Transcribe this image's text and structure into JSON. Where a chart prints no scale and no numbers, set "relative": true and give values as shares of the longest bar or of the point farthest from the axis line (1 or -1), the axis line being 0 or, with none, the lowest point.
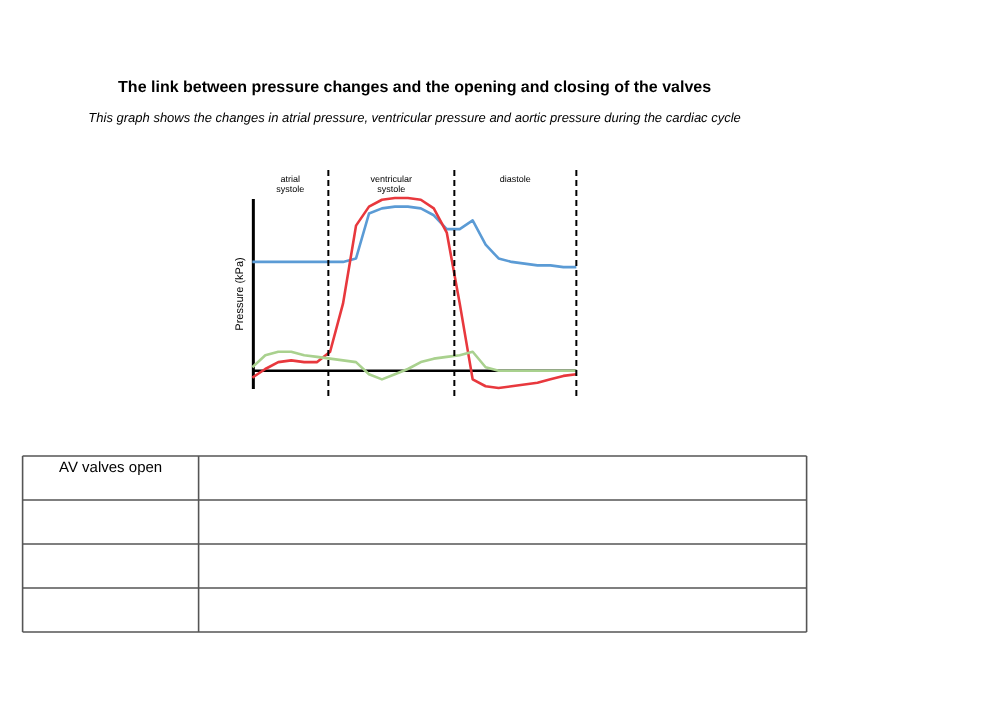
{
  "chart_data": {
    "type": "line",
    "title": "The link between pressure changes and the opening and closing of the valves",
    "subtitle": "This graph shows the changes in atrial pressure, ventricular pressure and aortic pressure during the cardiac cycle",
    "ylabel": "Pressure (kPa)",
    "relative": true,
    "marker": "none",
    "line_style": "solid",
    "categories": [
      null,
      null,
      null,
      null,
      null,
      null,
      null,
      null,
      null,
      null,
      null,
      null,
      null,
      null,
      null,
      null,
      null,
      null,
      null,
      null,
      null,
      null,
      null,
      null,
      null,
      null
    ],
    "series": [
      {
        "color": "#5b9bd5",
        "values": [
          0.63,
          0.63,
          0.63,
          0.63,
          0.63,
          0.63,
          0.63,
          0.63,
          0.65,
          0.91,
          0.94,
          0.95,
          0.95,
          0.94,
          0.9,
          0.82,
          0.82,
          0.87,
          0.73,
          0.65,
          0.63,
          0.62,
          0.61,
          0.61,
          0.6,
          0.6
        ]
      },
      {
        "color": "#e8383d",
        "values": [
          -0.04,
          0.01,
          0.05,
          0.06,
          0.05,
          0.05,
          0.11,
          0.39,
          0.84,
          0.95,
          0.99,
          1,
          1,
          0.99,
          0.94,
          0.8,
          0.39,
          -0.05,
          -0.09,
          -0.1,
          -0.09,
          -0.08,
          -0.07,
          -0.05,
          -0.03,
          -0.02
        ]
      },
      {
        "color": "#a9d18e",
        "values": [
          0.02,
          0.09,
          0.11,
          0.11,
          0.09,
          0.08,
          0.07,
          0.06,
          0.05,
          -0.02,
          -0.05,
          -0.02,
          0.01,
          0.05,
          0.07,
          0.08,
          0.09,
          0.11,
          0.02,
          0,
          0,
          0,
          0,
          0,
          0,
          0
        ]
      }
    ],
    "annotations": [
      "atrial systole",
      "ventricular systole",
      "diastole",
      "AV valves open"
    ]
  }
}
